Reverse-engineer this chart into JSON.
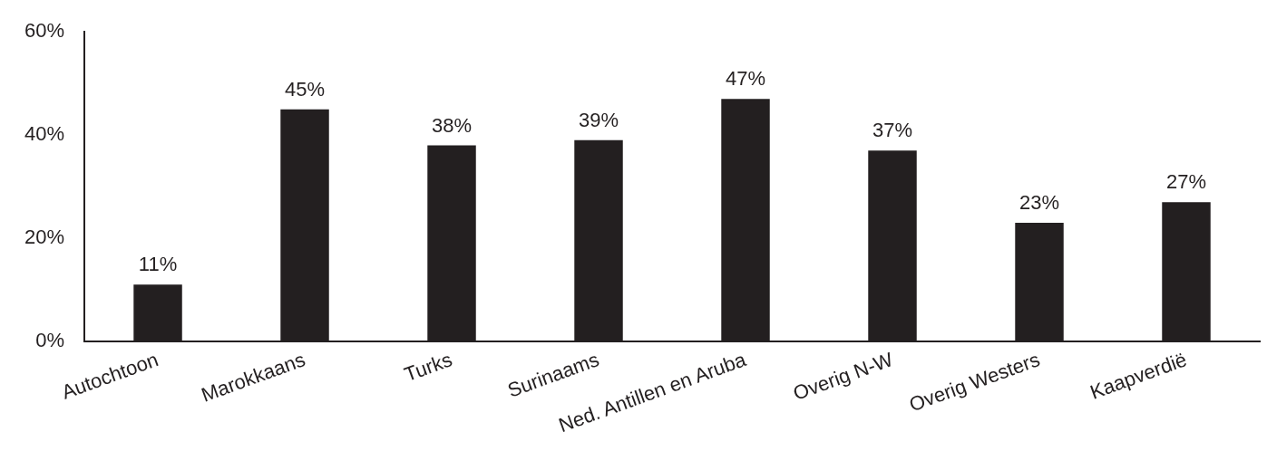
{
  "chart_data": {
    "type": "bar",
    "categories": [
      "Autochtoon",
      "Marokkaans",
      "Turks",
      "Surinaams",
      "Ned. Antillen en Aruba",
      "Overig N-W",
      "Overig Westers",
      "Kaapverdië"
    ],
    "values": [
      11,
      45,
      38,
      39,
      47,
      37,
      23,
      27
    ],
    "color": "#231f20",
    "value_labels": [
      "11%",
      "45%",
      "38%",
      "39%",
      "47%",
      "37%",
      "23%",
      "27%"
    ],
    "ylim": [
      0,
      60
    ],
    "yticks": [
      {
        "value": 0,
        "label": "0%"
      },
      {
        "value": 20,
        "label": "20%"
      },
      {
        "value": 40,
        "label": "40%"
      },
      {
        "value": 60,
        "label": "60%"
      }
    ],
    "grid": false,
    "legend": false
  }
}
